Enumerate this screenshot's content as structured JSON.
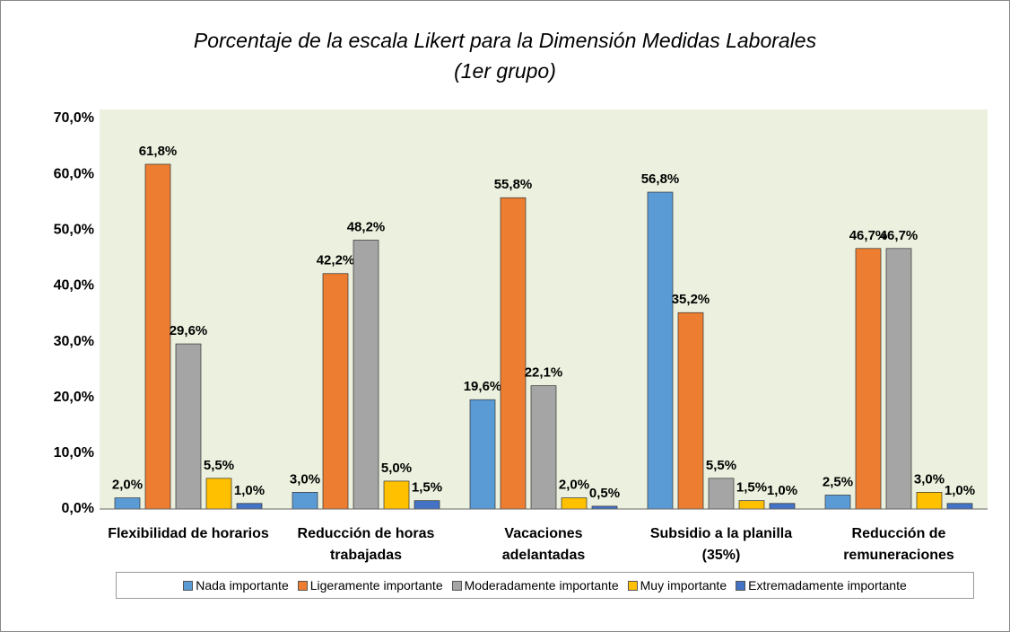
{
  "chart_data": {
    "type": "bar",
    "title": [
      "Porcentaje de la escala Likert para la Dimensión Medidas  Laborales",
      "(1er grupo)"
    ],
    "categories": [
      "Flexibilidad de horarios",
      "Reducción de horas trabajadas",
      "Vacaciones adelantadas",
      "Subsidio a la planilla (35%)",
      "Reducción de remuneraciones"
    ],
    "series": [
      {
        "name": "Nada importante",
        "color": "#5b9bd5",
        "values": [
          2.0,
          3.0,
          19.6,
          56.8,
          2.5
        ],
        "value_labels": [
          "2,0%",
          "3,0%",
          "19,6%",
          "56,8%",
          "2,5%"
        ]
      },
      {
        "name": "Ligeramente importante",
        "color": "#ed7d31",
        "values": [
          61.8,
          42.2,
          55.8,
          35.2,
          46.7
        ],
        "value_labels": [
          "61,8%",
          "42,2%",
          "55,8%",
          "35,2%",
          "46,7%"
        ]
      },
      {
        "name": "Moderadamente importante",
        "color": "#a5a5a5",
        "values": [
          29.6,
          48.2,
          22.1,
          5.5,
          46.7
        ],
        "value_labels": [
          "29,6%",
          "48,2%",
          "22,1%",
          "5,5%",
          "46,7%"
        ]
      },
      {
        "name": "Muy importante",
        "color": "#ffc000",
        "values": [
          5.5,
          5.0,
          2.0,
          1.5,
          3.0
        ],
        "value_labels": [
          "5,5%",
          "5,0%",
          "2,0%",
          "1,5%",
          "3,0%"
        ]
      },
      {
        "name": "Extremadamente importante",
        "color": "#4472c4",
        "values": [
          1.0,
          1.5,
          0.5,
          1.0,
          1.0
        ],
        "value_labels": [
          "1,0%",
          "1,5%",
          "0,5%",
          "1,0%",
          "1,0%"
        ]
      }
    ],
    "ylim": [
      0,
      70
    ],
    "yticks": [
      {
        "value": 0,
        "label": "0,0%"
      },
      {
        "value": 10,
        "label": "10,0%"
      },
      {
        "value": 20,
        "label": "20,0%"
      },
      {
        "value": 30,
        "label": "30,0%"
      },
      {
        "value": 40,
        "label": "40,0%"
      },
      {
        "value": 50,
        "label": "50,0%"
      },
      {
        "value": 60,
        "label": "60,0%"
      },
      {
        "value": 70,
        "label": "70,0%"
      }
    ],
    "grid": false,
    "legend": "bottom"
  }
}
